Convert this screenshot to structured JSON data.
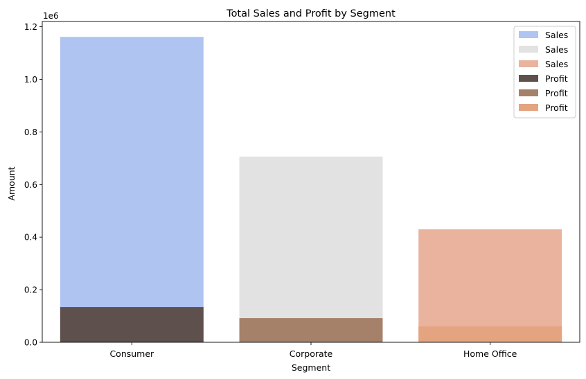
{
  "chart_data": {
    "type": "bar",
    "title": "Total Sales and Profit by Segment",
    "xlabel": "Segment",
    "ylabel": "Amount",
    "y_offset_text": "1e6",
    "ylim": [
      0,
      1.22
    ],
    "yticks": [
      "0.0",
      "0.2",
      "0.4",
      "0.6",
      "0.8",
      "1.0",
      "1.2"
    ],
    "categories": [
      "Consumer",
      "Corporate",
      "Home Office"
    ],
    "series": [
      {
        "name": "Sales",
        "values": [
          1161401,
          706146,
          429653
        ],
        "colors": [
          "#b0c4f1",
          "#e2e2e2",
          "#eab39e"
        ]
      },
      {
        "name": "Profit",
        "values": [
          134119,
          91979,
          60299
        ],
        "colors": [
          "#5e504d",
          "#a58169",
          "#e3a47f"
        ]
      }
    ],
    "legend": {
      "position": "top-right",
      "entries": [
        {
          "label": "Sales",
          "color": "#b0c4f1"
        },
        {
          "label": "Sales",
          "color": "#e2e2e2"
        },
        {
          "label": "Sales",
          "color": "#eab39e"
        },
        {
          "label": "Profit",
          "color": "#5e504d"
        },
        {
          "label": "Profit",
          "color": "#a58169"
        },
        {
          "label": "Profit",
          "color": "#e3a47f"
        }
      ]
    },
    "grid": false
  }
}
